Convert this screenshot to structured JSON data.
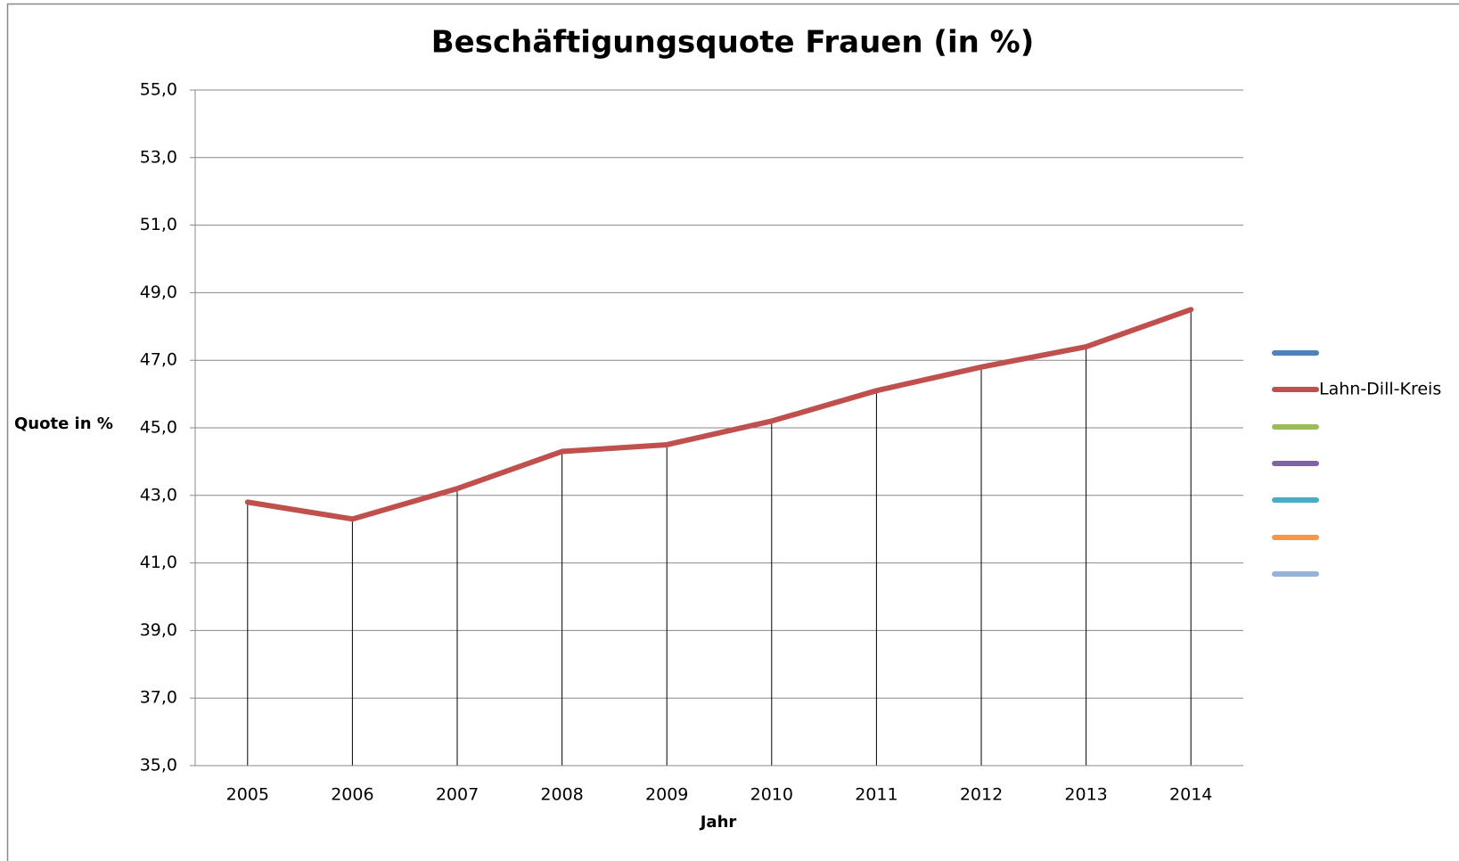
{
  "chart_data": {
    "type": "line",
    "title": "Beschäftigungsquote Frauen (in %)",
    "x_label": "Jahr",
    "y_label": "Quote in %",
    "categories": [
      "2005",
      "2006",
      "2007",
      "2008",
      "2009",
      "2010",
      "2011",
      "2012",
      "2013",
      "2014"
    ],
    "series": [
      {
        "name": null,
        "color": "#4F81BD",
        "values": [
          null,
          null,
          null,
          null,
          null,
          null,
          null,
          null,
          null,
          null
        ]
      },
      {
        "name": "Lahn-Dill-Kreis",
        "color": "#C0504D",
        "values": [
          42.8,
          42.3,
          43.2,
          44.3,
          44.5,
          45.2,
          46.1,
          46.8,
          47.4,
          48.5
        ]
      },
      {
        "name": null,
        "color": "#9BBB59",
        "values": [
          null,
          null,
          null,
          null,
          null,
          null,
          null,
          null,
          null,
          null
        ]
      },
      {
        "name": null,
        "color": "#8064A2",
        "values": [
          null,
          null,
          null,
          null,
          null,
          null,
          null,
          null,
          null,
          null
        ]
      },
      {
        "name": null,
        "color": "#4BACC6",
        "values": [
          null,
          null,
          null,
          null,
          null,
          null,
          null,
          null,
          null,
          null
        ]
      },
      {
        "name": null,
        "color": "#F79646",
        "values": [
          null,
          null,
          null,
          null,
          null,
          null,
          null,
          null,
          null,
          null
        ]
      },
      {
        "name": null,
        "color": "#95B3D7",
        "values": [
          null,
          null,
          null,
          null,
          null,
          null,
          null,
          null,
          null,
          null
        ]
      }
    ],
    "ylim": [
      35,
      55
    ],
    "yticks": [
      {
        "value": 35,
        "label": "35,0"
      },
      {
        "value": 37,
        "label": "37,0"
      },
      {
        "value": 39,
        "label": "39,0"
      },
      {
        "value": 41,
        "label": "41,0"
      },
      {
        "value": 43,
        "label": "43,0"
      },
      {
        "value": 45,
        "label": "45,0"
      },
      {
        "value": 47,
        "label": "47,0"
      },
      {
        "value": 49,
        "label": "49,0"
      },
      {
        "value": 51,
        "label": "51,0"
      },
      {
        "value": 53,
        "label": "53,0"
      },
      {
        "value": 55,
        "label": "55,0"
      }
    ],
    "grid": true,
    "drop_lines": true,
    "legend": "right"
  }
}
